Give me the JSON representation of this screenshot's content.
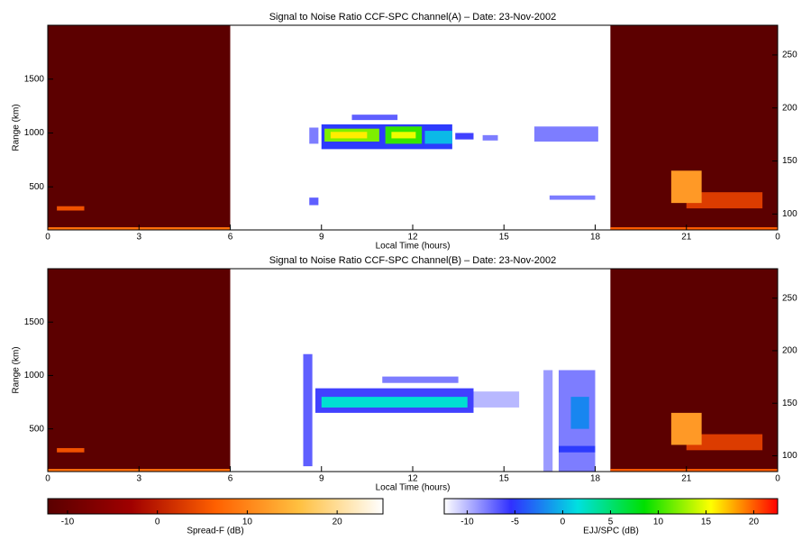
{
  "chart_data": [
    {
      "type": "heatmap",
      "title": "Signal to Noise Ratio CCF-SPC Channel(A) – Date: 23-Nov-2002",
      "xlabel": "Local Time (hours)",
      "ylabel": "Range (km)",
      "xlim": [
        0,
        24
      ],
      "xticks": [
        0,
        3,
        6,
        9,
        12,
        15,
        18,
        21,
        {
          "value": 24,
          "label": "0"
        }
      ],
      "ylim": [
        100,
        2000
      ],
      "yticks": [
        500,
        1000,
        1500
      ],
      "y2lim": [
        85,
        278
      ],
      "y2ticks": [
        100,
        150,
        200,
        250
      ],
      "spread_f": [
        [
          0,
          6,
          100,
          2000,
          -12
        ],
        [
          18.5,
          24,
          100,
          2000,
          -12
        ],
        [
          0,
          6,
          100,
          125,
          8
        ],
        [
          0.3,
          1.2,
          280,
          320,
          5
        ],
        [
          18.5,
          24,
          100,
          125,
          6
        ],
        [
          21,
          23.5,
          300,
          450,
          3
        ],
        [
          20.5,
          21.5,
          350,
          650,
          12
        ]
      ],
      "ejj": [
        [
          8.6,
          8.9,
          900,
          1050,
          -8
        ],
        [
          9,
          13.3,
          850,
          1080,
          -5
        ],
        [
          9.1,
          10.9,
          920,
          1040,
          12
        ],
        [
          9.3,
          10.5,
          950,
          1010,
          16
        ],
        [
          11.1,
          12.3,
          900,
          1060,
          10
        ],
        [
          11.3,
          12.1,
          950,
          1010,
          15
        ],
        [
          12.4,
          13.3,
          900,
          1020,
          0
        ],
        [
          10,
          11.5,
          1120,
          1170,
          -7
        ],
        [
          13.4,
          14,
          940,
          1000,
          -6
        ],
        [
          14.3,
          14.8,
          930,
          980,
          -8
        ],
        [
          16,
          18.1,
          920,
          1060,
          -8
        ],
        [
          8.6,
          8.9,
          330,
          400,
          -7
        ],
        [
          16.5,
          18,
          380,
          420,
          -8
        ]
      ]
    },
    {
      "type": "heatmap",
      "title": "Signal to Noise Ratio CCF-SPC Channel(B) – Date: 23-Nov-2002",
      "xlabel": "Local Time (hours)",
      "ylabel": "Range (km)",
      "xlim": [
        0,
        24
      ],
      "xticks": [
        0,
        3,
        6,
        9,
        12,
        15,
        18,
        21,
        {
          "value": 24,
          "label": "0"
        }
      ],
      "ylim": [
        100,
        2000
      ],
      "yticks": [
        500,
        1000,
        1500
      ],
      "y2lim": [
        85,
        278
      ],
      "y2ticks": [
        100,
        150,
        200,
        250
      ],
      "spread_f": [
        [
          0,
          6,
          100,
          2000,
          -12
        ],
        [
          18.5,
          24,
          100,
          2000,
          -12
        ],
        [
          0,
          6,
          100,
          125,
          8
        ],
        [
          0.3,
          1.2,
          280,
          320,
          5
        ],
        [
          18.5,
          24,
          100,
          125,
          6
        ],
        [
          21,
          23.5,
          300,
          450,
          3
        ],
        [
          20.5,
          21.5,
          350,
          650,
          12
        ]
      ],
      "ejj": [
        [
          8.4,
          8.7,
          150,
          1200,
          -7
        ],
        [
          8.8,
          14,
          650,
          880,
          -6
        ],
        [
          9,
          13.8,
          700,
          800,
          2
        ],
        [
          11,
          13.5,
          930,
          990,
          -8
        ],
        [
          14,
          15.5,
          700,
          850,
          -10
        ],
        [
          16.3,
          16.6,
          100,
          1050,
          -9
        ],
        [
          16.8,
          18,
          100,
          1050,
          -8
        ],
        [
          17.2,
          17.8,
          500,
          800,
          -2
        ],
        [
          16.8,
          18,
          280,
          340,
          -5
        ]
      ]
    },
    {
      "type": "colorbar",
      "label": "Spread-F (dB)",
      "xlim": [
        -12.2,
        25.1
      ],
      "xticks": [
        -10,
        0,
        10,
        20
      ],
      "colors": [
        "#5a0000",
        "#a00000",
        "#ff6000",
        "#ffc040",
        "#ffffff"
      ]
    },
    {
      "type": "colorbar",
      "label": "EJJ/SPC (dB)",
      "xlim": [
        -12.4,
        22.5
      ],
      "xticks": [
        -10,
        -5,
        0,
        5,
        10,
        15,
        20
      ],
      "colors": [
        "#ffffff",
        "#3030ff",
        "#00e0e0",
        "#00e000",
        "#ffff00",
        "#ff0000"
      ]
    }
  ]
}
